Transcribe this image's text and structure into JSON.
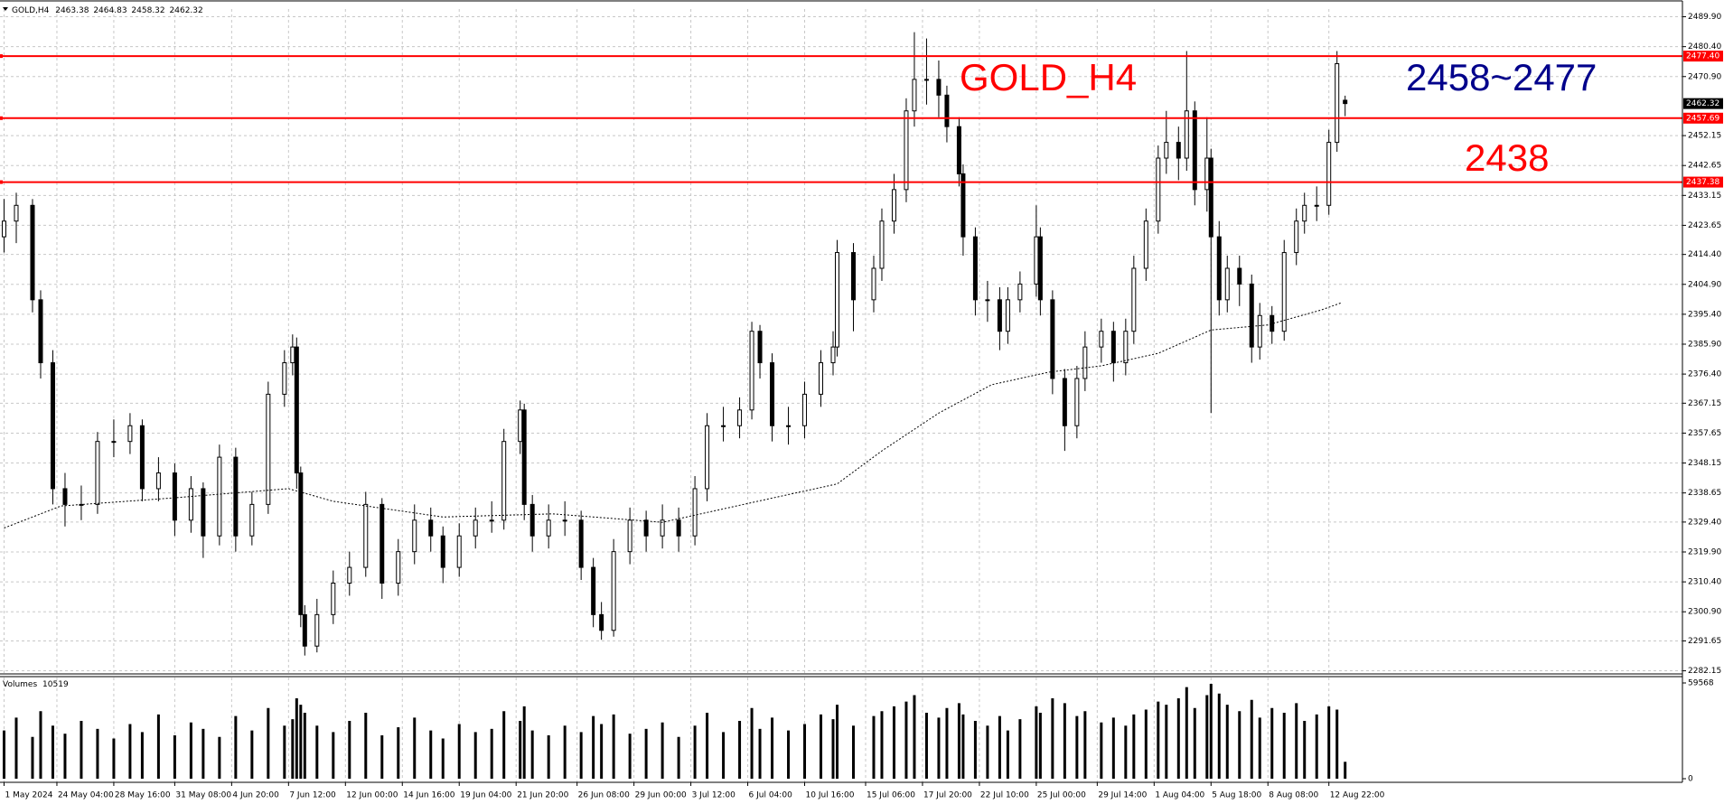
{
  "chart_data": {
    "type": "candlestick",
    "header": {
      "symbol": "GOLD,H4"
    },
    "color": "#000000",
    "up_fill": "#ffffff",
    "down_fill": "#000000",
    "x": [
      0,
      3,
      7,
      9,
      12,
      15,
      19,
      23,
      27,
      31,
      34,
      38,
      42,
      46,
      49,
      53,
      57,
      61,
      65,
      69,
      71,
      72,
      73,
      74,
      77,
      81,
      85,
      89,
      93,
      97,
      101,
      105,
      108,
      112,
      116,
      120,
      123,
      127,
      128,
      130,
      134,
      138,
      142,
      145,
      147,
      150,
      154,
      158,
      162,
      166,
      170,
      173,
      177,
      181,
      184,
      186,
      189,
      193,
      197,
      201,
      204,
      205,
      209,
      214,
      216,
      219,
      222,
      224,
      227,
      230,
      232,
      235,
      236,
      239,
      242,
      245,
      247,
      250,
      254,
      255,
      258,
      261,
      264,
      266,
      270,
      273,
      276,
      278,
      281,
      284,
      286,
      289,
      291,
      293,
      296,
      297,
      299,
      301,
      304,
      307,
      309,
      312,
      315,
      318,
      320,
      323,
      326,
      328,
      330
    ],
    "open": [
      2420,
      2425,
      2430,
      2400,
      2380,
      2340,
      2335,
      2335,
      2355,
      2355,
      2360,
      2340,
      2345,
      2330,
      2340,
      2325,
      2350,
      2325,
      2335,
      2370,
      2380,
      2385,
      2345,
      2300,
      2290,
      2300,
      2310,
      2315,
      2335,
      2310,
      2320,
      2330,
      2325,
      2315,
      2325,
      2330,
      2330,
      2355,
      2365,
      2335,
      2325,
      2330,
      2330,
      2315,
      2300,
      2295,
      2320,
      2330,
      2325,
      2330,
      2325,
      2340,
      2360,
      2360,
      2365,
      2390,
      2380,
      2360,
      2360,
      2370,
      2380,
      2385,
      2415,
      2400,
      2410,
      2425,
      2435,
      2460,
      2470,
      2470,
      2465,
      2455,
      2440,
      2420,
      2400,
      2400,
      2390,
      2400,
      2405,
      2420,
      2400,
      2375,
      2360,
      2375,
      2385,
      2390,
      2380,
      2390,
      2410,
      2425,
      2445,
      2450,
      2445,
      2460,
      2435,
      2445,
      2420,
      2400,
      2410,
      2405,
      2385,
      2395,
      2390,
      2415,
      2425,
      2430,
      2430,
      2450,
      2463.38
    ],
    "high": [
      2432,
      2434,
      2432,
      2403,
      2384,
      2345,
      2341,
      2358,
      2362,
      2364,
      2362,
      2350,
      2348,
      2344,
      2342,
      2354,
      2353,
      2339,
      2374,
      2384,
      2389,
      2388,
      2347,
      2303,
      2305,
      2314,
      2320,
      2339,
      2337,
      2324,
      2335,
      2334,
      2328,
      2329,
      2334,
      2336,
      2359,
      2368,
      2367,
      2338,
      2335,
      2336,
      2333,
      2318,
      2304,
      2324,
      2334,
      2333,
      2335,
      2334,
      2344,
      2364,
      2366,
      2369,
      2393,
      2392,
      2383,
      2366,
      2374,
      2384,
      2390,
      2419,
      2418,
      2414,
      2429,
      2440,
      2464,
      2485,
      2483,
      2476,
      2468,
      2458,
      2443,
      2423,
      2406,
      2404,
      2404,
      2409,
      2430,
      2423,
      2403,
      2378,
      2379,
      2390,
      2394,
      2393,
      2394,
      2414,
      2429,
      2449,
      2460,
      2455,
      2479,
      2463,
      2458,
      2448,
      2425,
      2414,
      2414,
      2408,
      2399,
      2398,
      2419,
      2429,
      2434,
      2436,
      2454,
      2479,
      2464.83
    ],
    "low": [
      2415,
      2418,
      2396,
      2375,
      2335,
      2328,
      2330,
      2332,
      2350,
      2351,
      2336,
      2336,
      2325,
      2326,
      2318,
      2322,
      2320,
      2322,
      2332,
      2366,
      2376,
      2340,
      2296,
      2287,
      2288,
      2297,
      2306,
      2312,
      2305,
      2306,
      2316,
      2320,
      2310,
      2312,
      2321,
      2326,
      2327,
      2351,
      2330,
      2320,
      2321,
      2325,
      2311,
      2296,
      2292,
      2293,
      2316,
      2320,
      2321,
      2320,
      2322,
      2336,
      2355,
      2356,
      2362,
      2375,
      2355,
      2354,
      2356,
      2366,
      2376,
      2382,
      2390,
      2396,
      2406,
      2421,
      2431,
      2455,
      2462,
      2458,
      2450,
      2436,
      2414,
      2395,
      2393,
      2384,
      2386,
      2396,
      2401,
      2395,
      2370,
      2352,
      2356,
      2371,
      2380,
      2374,
      2376,
      2386,
      2406,
      2421,
      2440,
      2438,
      2441,
      2430,
      2428,
      2364,
      2395,
      2396,
      2398,
      2380,
      2381,
      2386,
      2387,
      2411,
      2421,
      2425,
      2427,
      2447,
      2458.32
    ],
    "close": [
      2425,
      2430,
      2400,
      2380,
      2340,
      2335,
      2335,
      2355,
      2355,
      2360,
      2340,
      2345,
      2330,
      2340,
      2325,
      2350,
      2325,
      2335,
      2370,
      2380,
      2385,
      2345,
      2300,
      2290,
      2300,
      2310,
      2315,
      2335,
      2310,
      2320,
      2330,
      2325,
      2315,
      2325,
      2330,
      2330,
      2355,
      2365,
      2335,
      2325,
      2330,
      2330,
      2315,
      2300,
      2295,
      2320,
      2330,
      2325,
      2330,
      2325,
      2340,
      2360,
      2360,
      2365,
      2390,
      2380,
      2360,
      2360,
      2370,
      2380,
      2385,
      2415,
      2400,
      2410,
      2425,
      2435,
      2460,
      2470,
      2470,
      2465,
      2455,
      2440,
      2420,
      2400,
      2400,
      2390,
      2400,
      2405,
      2420,
      2400,
      2375,
      2360,
      2375,
      2385,
      2390,
      2380,
      2390,
      2410,
      2425,
      2445,
      2450,
      2445,
      2460,
      2435,
      2445,
      2420,
      2400,
      2410,
      2405,
      2385,
      2395,
      2390,
      2415,
      2425,
      2430,
      2430,
      2450,
      2475,
      2462.32
    ],
    "xlim": [
      -1,
      413
    ],
    "xticks": [
      {
        "value": 0,
        "label": "1 May 2024"
      },
      {
        "value": 13,
        "label": "24 May 04:00"
      },
      {
        "value": 27,
        "label": "28 May 16:00"
      },
      {
        "value": 42,
        "label": "31 May 08:00"
      },
      {
        "value": 56,
        "label": "4 Jun 20:00"
      },
      {
        "value": 70,
        "label": "7 Jun 12:00"
      },
      {
        "value": 84,
        "label": "12 Jun 00:00"
      },
      {
        "value": 98,
        "label": "14 Jun 16:00"
      },
      {
        "value": 112,
        "label": "19 Jun 04:00"
      },
      {
        "value": 126,
        "label": "21 Jun 20:00"
      },
      {
        "value": 141,
        "label": "26 Jun 08:00"
      },
      {
        "value": 155,
        "label": "29 Jun 00:00"
      },
      {
        "value": 169,
        "label": "3 Jul 12:00"
      },
      {
        "value": 183,
        "label": "6 Jul 04:00"
      },
      {
        "value": 197,
        "label": "10 Jul 16:00"
      },
      {
        "value": 212,
        "label": "15 Jul 06:00"
      },
      {
        "value": 226,
        "label": "17 Jul 20:00"
      },
      {
        "value": 240,
        "label": "22 Jul 10:00"
      },
      {
        "value": 254,
        "label": "25 Jul 00:00"
      },
      {
        "value": 269,
        "label": "29 Jul 14:00"
      },
      {
        "value": 283,
        "label": "1 Aug 04:00"
      },
      {
        "value": 297,
        "label": "5 Aug 18:00"
      },
      {
        "value": 311,
        "label": "8 Aug 08:00"
      },
      {
        "value": 326,
        "label": "12 Aug 22:00"
      }
    ],
    "ylim": [
      2281.45,
      2492.35
    ],
    "yticks": [
      {
        "value": 2489.9,
        "label": "2489.90"
      },
      {
        "value": 2480.4,
        "label": "2480.40"
      },
      {
        "value": 2470.9,
        "label": "2470.90"
      },
      2452.15,
      2442.65,
      2433.15,
      2423.65,
      {
        "value": 2414.4,
        "label": "2414.40"
      },
      {
        "value": 2404.9,
        "label": "2404.90"
      },
      {
        "value": 2395.4,
        "label": "2395.40"
      },
      {
        "value": 2385.9,
        "label": "2385.90"
      },
      {
        "value": 2376.4,
        "label": "2376.40"
      },
      2367.15,
      2357.65,
      2348.15,
      2338.65,
      {
        "value": 2329.4,
        "label": "2329.40"
      },
      {
        "value": 2319.9,
        "label": "2319.90"
      },
      {
        "value": 2310.4,
        "label": "2310.40"
      },
      {
        "value": 2300.9,
        "label": "2300.90"
      },
      2291.65,
      2282.15
    ],
    "grid": true,
    "ma": {
      "color": "#000000",
      "x": [
        0,
        14,
        41,
        70,
        81,
        108,
        135,
        162,
        189,
        205,
        216,
        230,
        243,
        257,
        270,
        284,
        297,
        311,
        324,
        329
      ],
      "values": [
        2327.5,
        2334.5,
        2337,
        2340,
        2336,
        2331,
        2332,
        2329.3,
        2337,
        2341.5,
        2352,
        2364,
        2373,
        2377,
        2379,
        2383,
        2390.4,
        2392,
        2396.7,
        2399
      ]
    },
    "level_color": "#ff0000",
    "levels": [
      {
        "value": 2477.4,
        "label": "2477.40"
      },
      2457.69,
      {
        "value": 2437.38,
        "label": "2437.38"
      }
    ],
    "annotations": [
      {
        "text": "GOLD_H4",
        "color": "#ff0000"
      },
      {
        "text": "2458~2477",
        "color": "#00008b"
      },
      {
        "text": "2438",
        "color": "#ff0000"
      }
    ],
    "volume": {
      "label": "Volumes",
      "ylim": [
        0,
        59568
      ],
      "yticks": [
        59568,
        0
      ],
      "values": [
        30000,
        38000,
        26000,
        42000,
        33000,
        28000,
        36000,
        31000,
        25000,
        34000,
        29000,
        40000,
        27000,
        35000,
        31000,
        26000,
        39000,
        30000,
        44000,
        33000,
        37000,
        50000,
        46000,
        41000,
        33000,
        29000,
        36000,
        41000,
        27000,
        32000,
        38000,
        30000,
        25000,
        34000,
        29000,
        31000,
        42000,
        36000,
        45000,
        30000,
        27000,
        33000,
        29000,
        39000,
        34000,
        40000,
        28000,
        31000,
        35000,
        26000,
        33000,
        41000,
        29000,
        36000,
        44000,
        31000,
        38000,
        30000,
        34000,
        40000,
        37000,
        46000,
        33000,
        39000,
        42000,
        45000,
        48000,
        52000,
        41000,
        38000,
        44000,
        47000,
        40000,
        36000,
        33000,
        39000,
        30000,
        37000,
        45000,
        41000,
        50000,
        47000,
        39000,
        42000,
        35000,
        38000,
        33000,
        40000,
        43000,
        48000,
        46000,
        50000,
        57000,
        44000,
        52000,
        59000,
        53000,
        46000,
        42000,
        49000,
        38000,
        44000,
        41000,
        47000,
        36000,
        40000,
        45000,
        43000,
        10519
      ]
    }
  }
}
